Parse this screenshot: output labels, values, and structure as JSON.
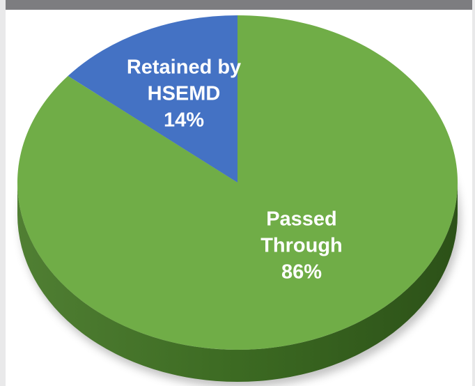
{
  "chart_data": {
    "type": "pie",
    "title": "",
    "slices": [
      {
        "label_lines": [
          "Retained by",
          "HSEMD"
        ],
        "value": 14,
        "value_label": "14%",
        "color": "#4472c4"
      },
      {
        "label_lines": [
          "Passed",
          "Through"
        ],
        "value": 86,
        "value_label": "86%",
        "color": "#70ad47"
      }
    ],
    "style": "3d",
    "side_color": "#3f6e25",
    "start_angle_deg": -90,
    "direction": "counterclockwise"
  }
}
